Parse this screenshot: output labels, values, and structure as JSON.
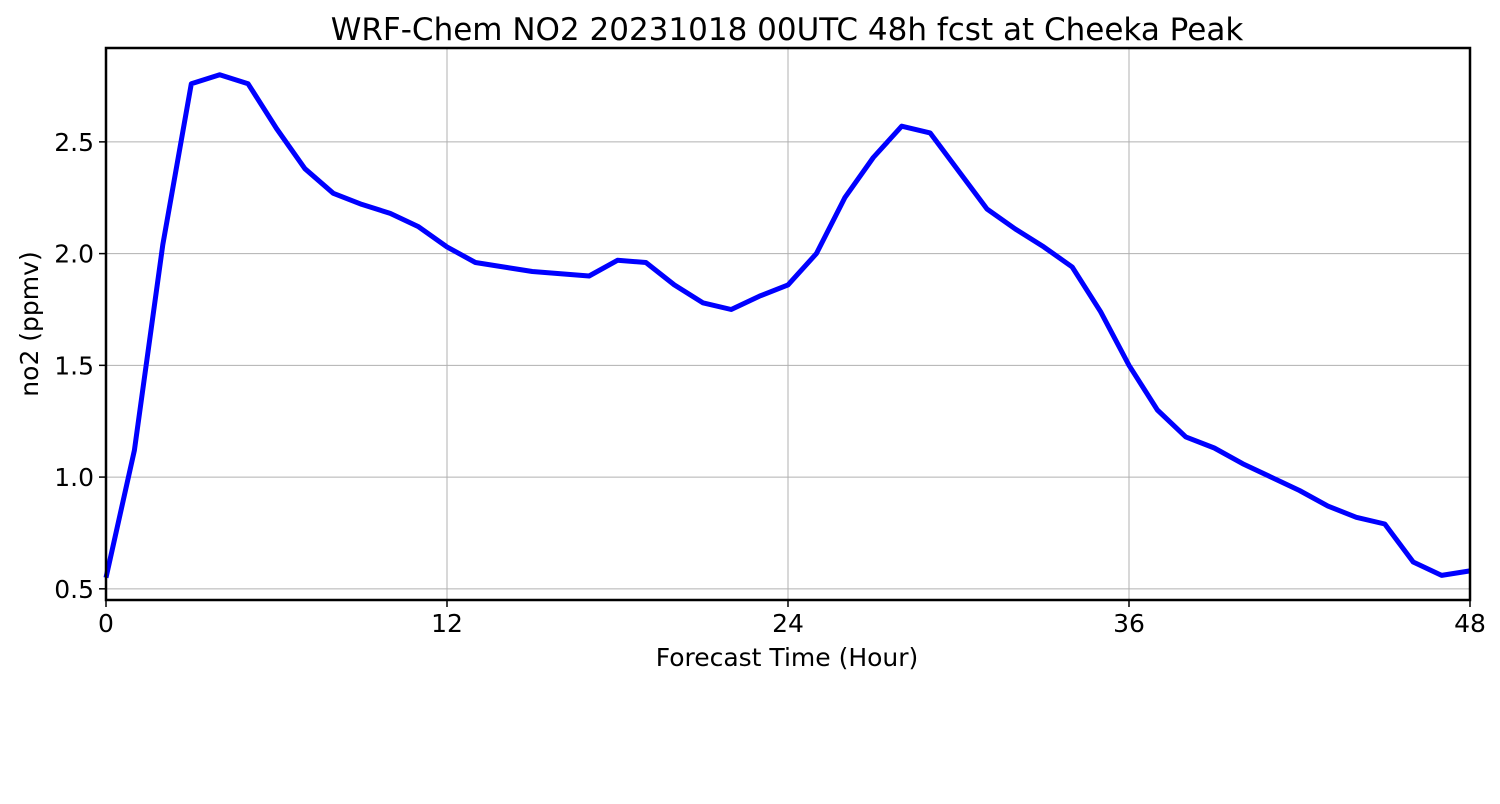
{
  "chart_data": {
    "type": "line",
    "title": "WRF-Chem NO2  20231018 00UTC 48h fcst at Cheeka Peak",
    "xlabel": "Forecast Time (Hour)",
    "ylabel": "no2  (ppmv)",
    "xlim": [
      0,
      48
    ],
    "ylim": [
      0.45,
      2.92
    ],
    "xticks": [
      0,
      12,
      24,
      36,
      48
    ],
    "yticks": [
      0.5,
      1.0,
      1.5,
      2.0,
      2.5
    ],
    "ytick_labels": [
      "0.5",
      "1.0",
      "1.5",
      "2.0",
      "2.5"
    ],
    "grid": true,
    "line_color": "#0000ff",
    "series": [
      {
        "x": [
          0,
          1,
          2,
          3,
          4,
          5,
          6,
          7,
          8,
          9,
          10,
          11,
          12,
          13,
          14,
          15,
          16,
          17,
          18,
          19,
          20,
          21,
          22,
          23,
          24,
          25,
          26,
          27,
          28,
          29,
          30,
          31,
          32,
          33,
          34,
          35,
          36,
          37,
          38,
          39,
          40,
          41,
          42,
          43,
          44,
          45,
          46,
          47,
          48
        ],
        "values": [
          0.55,
          1.12,
          2.04,
          2.76,
          2.8,
          2.76,
          2.56,
          2.38,
          2.27,
          2.22,
          2.18,
          2.12,
          2.03,
          1.96,
          1.94,
          1.92,
          1.91,
          1.9,
          1.97,
          1.96,
          1.86,
          1.78,
          1.75,
          1.81,
          1.86,
          2.0,
          2.25,
          2.43,
          2.57,
          2.54,
          2.37,
          2.2,
          2.11,
          2.03,
          1.94,
          1.74,
          1.5,
          1.3,
          1.18,
          1.13,
          1.06,
          1.0,
          0.94,
          0.87,
          0.82,
          0.79,
          0.62,
          0.56,
          0.58
        ]
      }
    ]
  }
}
